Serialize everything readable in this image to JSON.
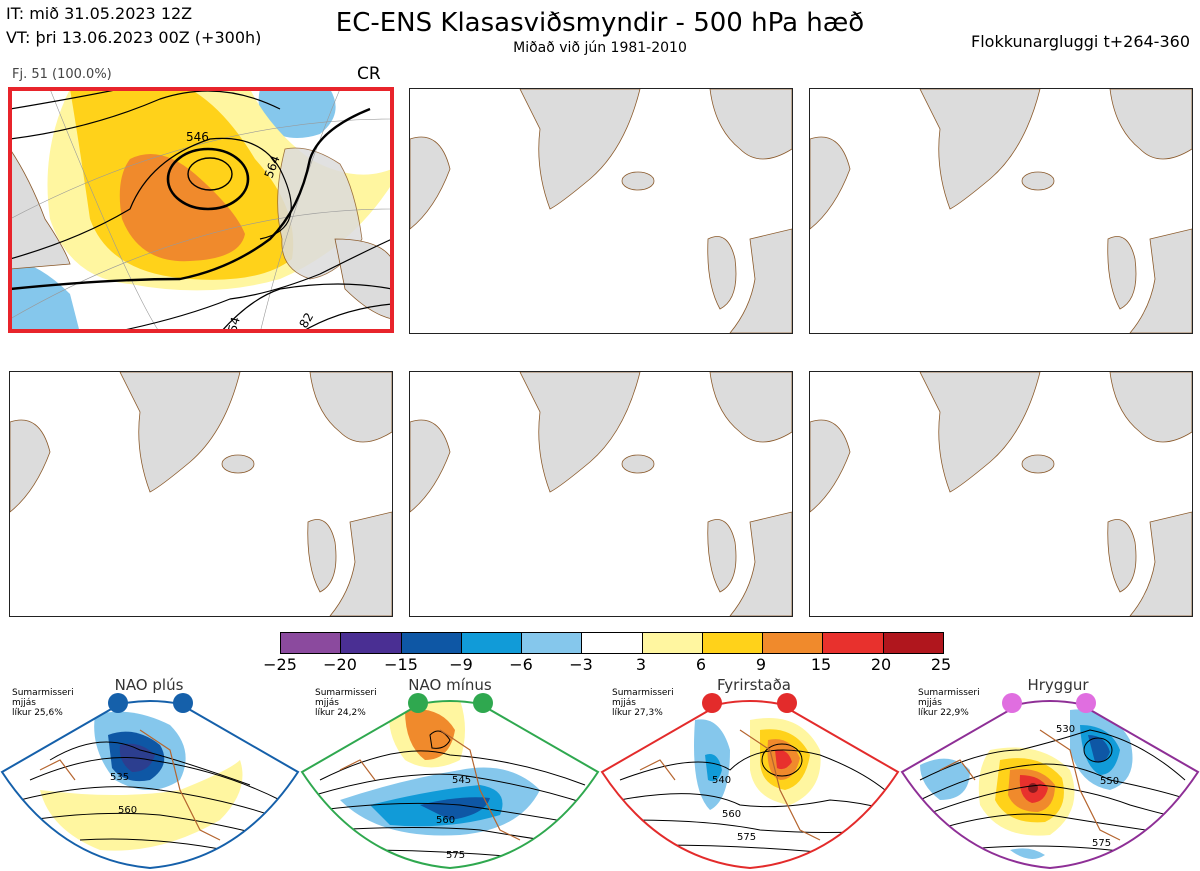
{
  "header": {
    "it_line": "IT: mið 31.05.2023 12Z",
    "vt_line": "VT: þri 13.06.2023 00Z  (+300h)",
    "title": "EC-ENS Klasasviðsmyndir - 500 hPa hæð",
    "subtitle": "Miðað við jún 1981-2010",
    "window": "Flokkunargluggi t+264-360"
  },
  "cluster": {
    "label": "Fj. 51 (100.0%)",
    "regime_code": "CR",
    "contour_labels": [
      "546",
      "564",
      "54",
      "82"
    ]
  },
  "colorbar": {
    "ticks": [
      "−25",
      "−20",
      "−15",
      "−9",
      "−6",
      "−3",
      "3",
      "6",
      "9",
      "15",
      "20",
      "25"
    ],
    "colors": [
      "#8b4a9e",
      "#4a2f93",
      "#0e57a5",
      "#119bd8",
      "#85c7ec",
      "#ffffff",
      "#fff6a0",
      "#ffd21a",
      "#f08a2c",
      "#e8312d",
      "#b0161d"
    ]
  },
  "regimes": [
    {
      "name": "NAO plús",
      "season": "Sumarmisseri",
      "level": "mjjás",
      "prob": "líkur 25,6%",
      "color": "#1560aa",
      "contour_labels": [
        "535",
        "560"
      ]
    },
    {
      "name": "NAO mínus",
      "season": "Sumarmisseri",
      "level": "mjjás",
      "prob": "líkur 24,2%",
      "color": "#2fa84f",
      "contour_labels": [
        "545",
        "560",
        "575"
      ]
    },
    {
      "name": "Fyrirstaða",
      "season": "Sumarmisseri",
      "level": "mjjás",
      "prob": "líkur 27,3%",
      "color": "#e32b2b",
      "contour_labels": [
        "540",
        "560",
        "575"
      ]
    },
    {
      "name": "Hryggur",
      "season": "Sumarmisseri",
      "level": "mjjás",
      "prob": "líkur 22,9%",
      "color": "#8e2f96",
      "contour_labels": [
        "530",
        "550",
        "575"
      ]
    }
  ]
}
